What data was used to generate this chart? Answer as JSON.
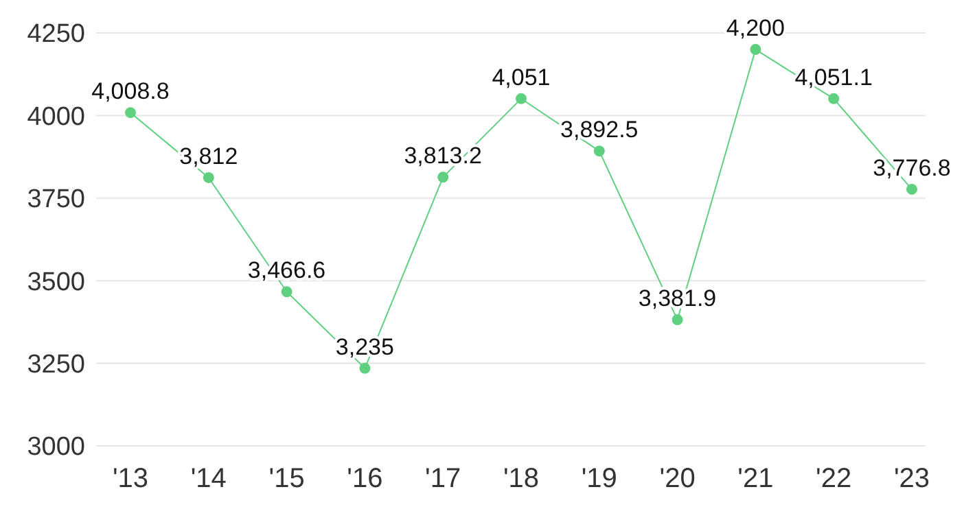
{
  "chart_data": {
    "type": "line",
    "categories": [
      "'13",
      "'14",
      "'15",
      "'16",
      "'17",
      "'18",
      "'19",
      "'20",
      "'21",
      "'22",
      "'23"
    ],
    "series": [
      {
        "color": "#5fd07f",
        "values": [
          4008.8,
          3812,
          3466.6,
          3235,
          3813.2,
          4051,
          3892.5,
          3381.9,
          4200,
          4051.1,
          3776.8
        ],
        "value_labels": [
          "4,008.8",
          "3,812",
          "3,466.6",
          "3,235",
          "3,813.2",
          "4,051",
          "3,892.5",
          "3,381.9",
          "4,200",
          "4,051.1",
          "3,776.8"
        ]
      }
    ],
    "ylim": [
      3000,
      4250
    ],
    "yticks": [
      3000,
      3250,
      3500,
      3750,
      4000,
      4250
    ],
    "grid": "y",
    "marker": "circle"
  }
}
